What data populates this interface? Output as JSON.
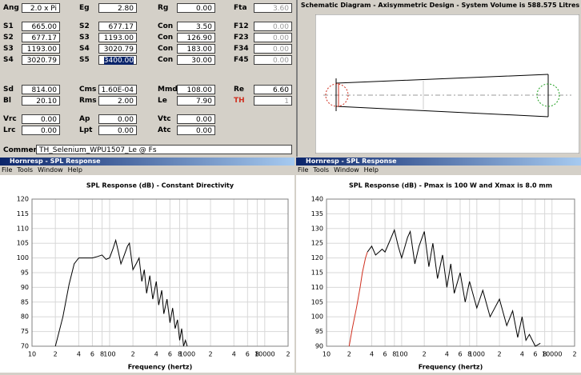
{
  "parameters": {
    "rows": [
      [
        {
          "label": "Ang",
          "value": "2.0 x Pi"
        },
        {
          "label": "Eg",
          "value": "2.80"
        },
        {
          "label": "Rg",
          "value": "0.00"
        },
        {
          "label": "Fta",
          "value": "3.60"
        }
      ],
      [
        {
          "label": "S1",
          "value": "665.00"
        },
        {
          "label": "S2",
          "value": "677.17"
        },
        {
          "label": "Con",
          "value": "3.50"
        },
        {
          "label": "F12",
          "value": "0.00"
        }
      ],
      [
        {
          "label": "S2",
          "value": "677.17"
        },
        {
          "label": "S3",
          "value": "1193.00"
        },
        {
          "label": "Con",
          "value": "126.90"
        },
        {
          "label": "F23",
          "value": "0.00"
        }
      ],
      [
        {
          "label": "S3",
          "value": "1193.00"
        },
        {
          "label": "S4",
          "value": "3020.79"
        },
        {
          "label": "Con",
          "value": "183.00"
        },
        {
          "label": "F34",
          "value": "0.00"
        }
      ],
      [
        {
          "label": "S4",
          "value": "3020.79"
        },
        {
          "label": "S5",
          "value": "3400.00"
        },
        {
          "label": "Con",
          "value": "30.00"
        },
        {
          "label": "F45",
          "value": "0.00"
        }
      ],
      [
        {
          "label": "Sd",
          "value": "814.00"
        },
        {
          "label": "Cms",
          "value": "1.60E-04"
        },
        {
          "label": "Mmd",
          "value": "108.00"
        },
        {
          "label": "Re",
          "value": "6.60"
        }
      ],
      [
        {
          "label": "Bl",
          "value": "20.10"
        },
        {
          "label": "Rms",
          "value": "2.00"
        },
        {
          "label": "Le",
          "value": "7.90"
        },
        {
          "label": "TH",
          "value": "1"
        }
      ],
      [
        {
          "label": "Vrc",
          "value": "0.00"
        },
        {
          "label": "Ap",
          "value": "0.00"
        },
        {
          "label": "Vtc",
          "value": "0.00"
        }
      ],
      [
        {
          "label": "Lrc",
          "value": "0.00"
        },
        {
          "label": "Lpt",
          "value": "0.00"
        },
        {
          "label": "Atc",
          "value": "0.00"
        }
      ]
    ],
    "comment": {
      "label": "Comment",
      "value": "TH_Selenium_WPU1507_Le @ Fs"
    }
  },
  "schematic": {
    "title": "Schematic Diagram - Axisymmetric Design - System Volume is 588.575 Litres"
  },
  "windows": [
    {
      "title": "Hornresp - SPL Response",
      "menu": [
        "File",
        "Tools",
        "Window",
        "Help"
      ]
    },
    {
      "title": "Hornresp - SPL Response",
      "menu": [
        "File",
        "Tools",
        "Window",
        "Help"
      ]
    }
  ],
  "chart_data": [
    {
      "type": "line",
      "title": "SPL Response (dB) - Constant Directivity",
      "x_label": "Frequency (hertz)",
      "xscale": "log",
      "xlim": [
        10,
        20000
      ],
      "ylim": [
        70,
        120
      ],
      "grid": true,
      "xticks": [
        10,
        {
          "value": 20,
          "label": "2"
        },
        {
          "value": 40,
          "label": "4"
        },
        {
          "value": 60,
          "label": "6"
        },
        {
          "value": 80,
          "label": "8"
        },
        100,
        {
          "value": 200,
          "label": "2"
        },
        {
          "value": 400,
          "label": "4"
        },
        {
          "value": 600,
          "label": "6"
        },
        {
          "value": 800,
          "label": "8"
        },
        1000,
        {
          "value": 2000,
          "label": "2"
        },
        {
          "value": 4000,
          "label": "4"
        },
        {
          "value": 6000,
          "label": "6"
        },
        {
          "value": 8000,
          "label": "8"
        },
        10000,
        {
          "value": 20000,
          "label": "2"
        }
      ],
      "yticks": [
        70,
        75,
        80,
        85,
        90,
        95,
        100,
        105,
        110,
        115,
        120
      ],
      "series": [
        {
          "color": "#000000",
          "x": [
            20,
            25,
            30,
            35,
            40,
            50,
            60,
            70,
            80,
            90,
            100,
            110,
            120,
            130,
            140,
            150,
            170,
            180,
            200,
            220,
            240,
            260,
            280,
            300,
            330,
            360,
            400,
            430,
            470,
            500,
            550,
            600,
            650,
            700,
            750,
            800,
            850,
            900,
            950,
            1000
          ],
          "values": [
            70,
            80,
            91,
            98,
            100,
            100,
            100,
            100.5,
            101,
            99.5,
            100,
            103,
            106,
            102,
            98,
            100,
            104,
            105,
            96,
            98,
            100,
            92,
            96,
            88,
            94,
            86,
            92,
            84,
            89,
            81,
            86,
            78,
            83,
            76,
            79,
            72,
            76,
            70,
            72,
            70
          ]
        }
      ]
    },
    {
      "type": "line",
      "title": "SPL Response (dB) - Pmax is 100 W and Xmax is 8.0 mm",
      "x_label": "Frequency (hertz)",
      "xscale": "log",
      "xlim": [
        10,
        20000
      ],
      "ylim": [
        90,
        140
      ],
      "grid": true,
      "xticks": [
        10,
        {
          "value": 20,
          "label": "2"
        },
        {
          "value": 40,
          "label": "4"
        },
        {
          "value": 60,
          "label": "6"
        },
        {
          "value": 80,
          "label": "8"
        },
        100,
        {
          "value": 200,
          "label": "2"
        },
        {
          "value": 400,
          "label": "4"
        },
        {
          "value": 600,
          "label": "6"
        },
        {
          "value": 800,
          "label": "8"
        },
        1000,
        {
          "value": 2000,
          "label": "2"
        },
        {
          "value": 4000,
          "label": "4"
        },
        {
          "value": 6000,
          "label": "6"
        },
        {
          "value": 8000,
          "label": "8"
        },
        10000,
        {
          "value": 20000,
          "label": "2"
        }
      ],
      "yticks": [
        90,
        95,
        100,
        105,
        110,
        115,
        120,
        125,
        130,
        135,
        140
      ],
      "series": [
        {
          "color": "#d03020",
          "x": [
            20,
            22,
            25,
            28,
            30,
            33,
            35
          ],
          "values": [
            90,
            96,
            103,
            110,
            115,
            120,
            122
          ]
        },
        {
          "color": "#000000",
          "x": [
            35,
            40,
            45,
            50,
            55,
            60,
            70,
            80,
            90,
            100,
            120,
            130,
            150,
            170,
            200,
            230,
            260,
            300,
            350,
            400,
            450,
            500,
            600,
            700,
            800,
            1000,
            1200,
            1500,
            2000,
            2500,
            3000,
            3500,
            4000,
            4500,
            5000,
            6000,
            7000
          ],
          "values": [
            122,
            124,
            121,
            122,
            123,
            122,
            126,
            129.5,
            124,
            120,
            127,
            129,
            118,
            124,
            129,
            117,
            125,
            113,
            121,
            110,
            118,
            108,
            115,
            105,
            112,
            103,
            109,
            100,
            106,
            97,
            102,
            93,
            100,
            92,
            94,
            90,
            91
          ]
        }
      ]
    }
  ]
}
